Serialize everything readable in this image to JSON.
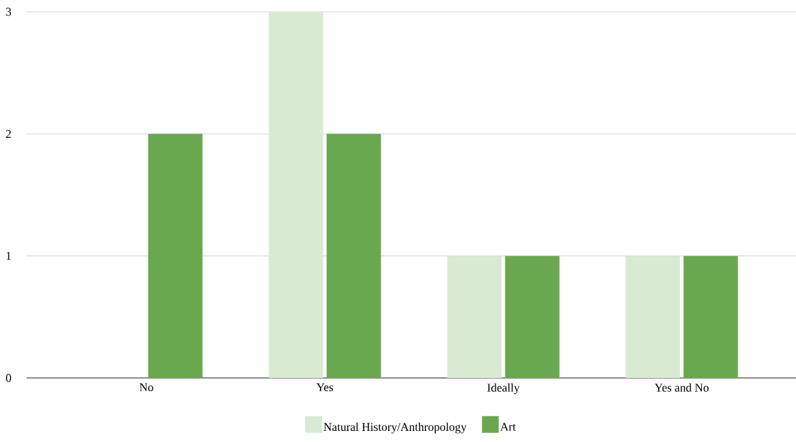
{
  "chart_data": {
    "type": "bar",
    "categories": [
      "No",
      "Yes",
      "Ideally",
      "Yes and No"
    ],
    "series": [
      {
        "name": "Natural History/Anthropology",
        "color": "#d9ead3",
        "values": [
          0,
          3,
          1,
          1
        ]
      },
      {
        "name": "Art",
        "color": "#6aa84f",
        "values": [
          2,
          2,
          1,
          1
        ]
      }
    ],
    "ylim": [
      0,
      3
    ],
    "yticks": [
      0,
      1,
      2,
      3
    ],
    "grid": "y",
    "legend": "bottom"
  }
}
